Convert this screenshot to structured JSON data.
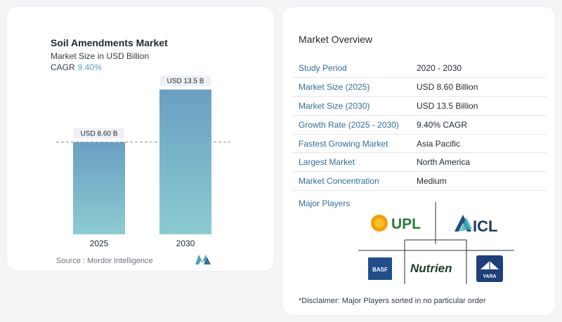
{
  "chart": {
    "title": "Soil Amendments Market",
    "subtitle": "Market Size in USD Billion",
    "cagr_label": "CAGR",
    "cagr_value": "9.40%",
    "source": "Source :  Mordor Intelligence"
  },
  "chart_data": {
    "type": "bar",
    "title": "Soil Amendments Market",
    "subtitle": "Market Size in USD Billion",
    "categories": [
      "2025",
      "2030"
    ],
    "values": [
      8.6,
      13.5
    ],
    "data_labels": [
      "USD 8.60 B",
      "USD 13.5 B"
    ],
    "ylim": [
      0,
      14
    ],
    "grid": false,
    "reference_line": 8.6,
    "colors": {
      "bar_top": "#6a9fc3",
      "bar_bottom": "#8ccbd1"
    }
  },
  "overview": {
    "title": "Market Overview",
    "rows": [
      {
        "key": "Study Period",
        "value": "2020 - 2030"
      },
      {
        "key": "Market Size (2025)",
        "value": "USD 8.60 Billion"
      },
      {
        "key": "Market Size (2030)",
        "value": "USD 13.5 Billion"
      },
      {
        "key": "Growth Rate (2025 - 2030)",
        "value": "9.40% CAGR"
      },
      {
        "key": "Fastest Growing Market",
        "value": "Asia Pacific"
      },
      {
        "key": "Largest Market",
        "value": "North America"
      },
      {
        "key": "Market Concentration",
        "value": "Medium"
      }
    ]
  },
  "players": {
    "title": "Major Players",
    "logos": [
      "UPL",
      "ICL",
      "BASF",
      "Nutrien",
      "YARA"
    ]
  },
  "disclaimer": "*Disclaimer: Major Players sorted in no particular order"
}
